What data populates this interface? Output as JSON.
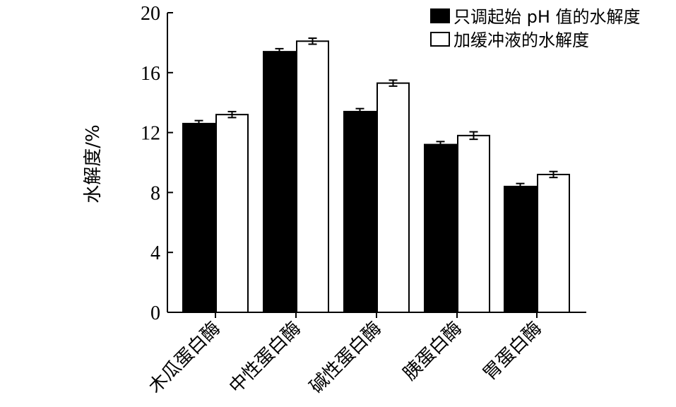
{
  "chart_data": {
    "type": "bar",
    "title": "",
    "xlabel": "",
    "ylabel": "水解度/%",
    "ylim": [
      0,
      20
    ],
    "yticks": [
      "0",
      "4",
      "8",
      "12",
      "16",
      "20"
    ],
    "grid": false,
    "legend_position": "top-right",
    "categories": [
      "木瓜蛋白酶",
      "中性蛋白酶",
      "碱性蛋白酶",
      "胰蛋白酶",
      "胃蛋白酶"
    ],
    "series": [
      {
        "name": "只调起始 pH 值的水解度",
        "color": "#000000",
        "values": [
          12.6,
          17.4,
          13.4,
          11.2,
          8.4
        ],
        "errors": [
          0.2,
          0.2,
          0.2,
          0.2,
          0.2
        ]
      },
      {
        "name": "加缓冲液的水解度",
        "color": "#ffffff",
        "values": [
          13.2,
          18.1,
          15.3,
          11.8,
          9.2
        ],
        "errors": [
          0.2,
          0.2,
          0.2,
          0.25,
          0.2
        ]
      }
    ]
  }
}
